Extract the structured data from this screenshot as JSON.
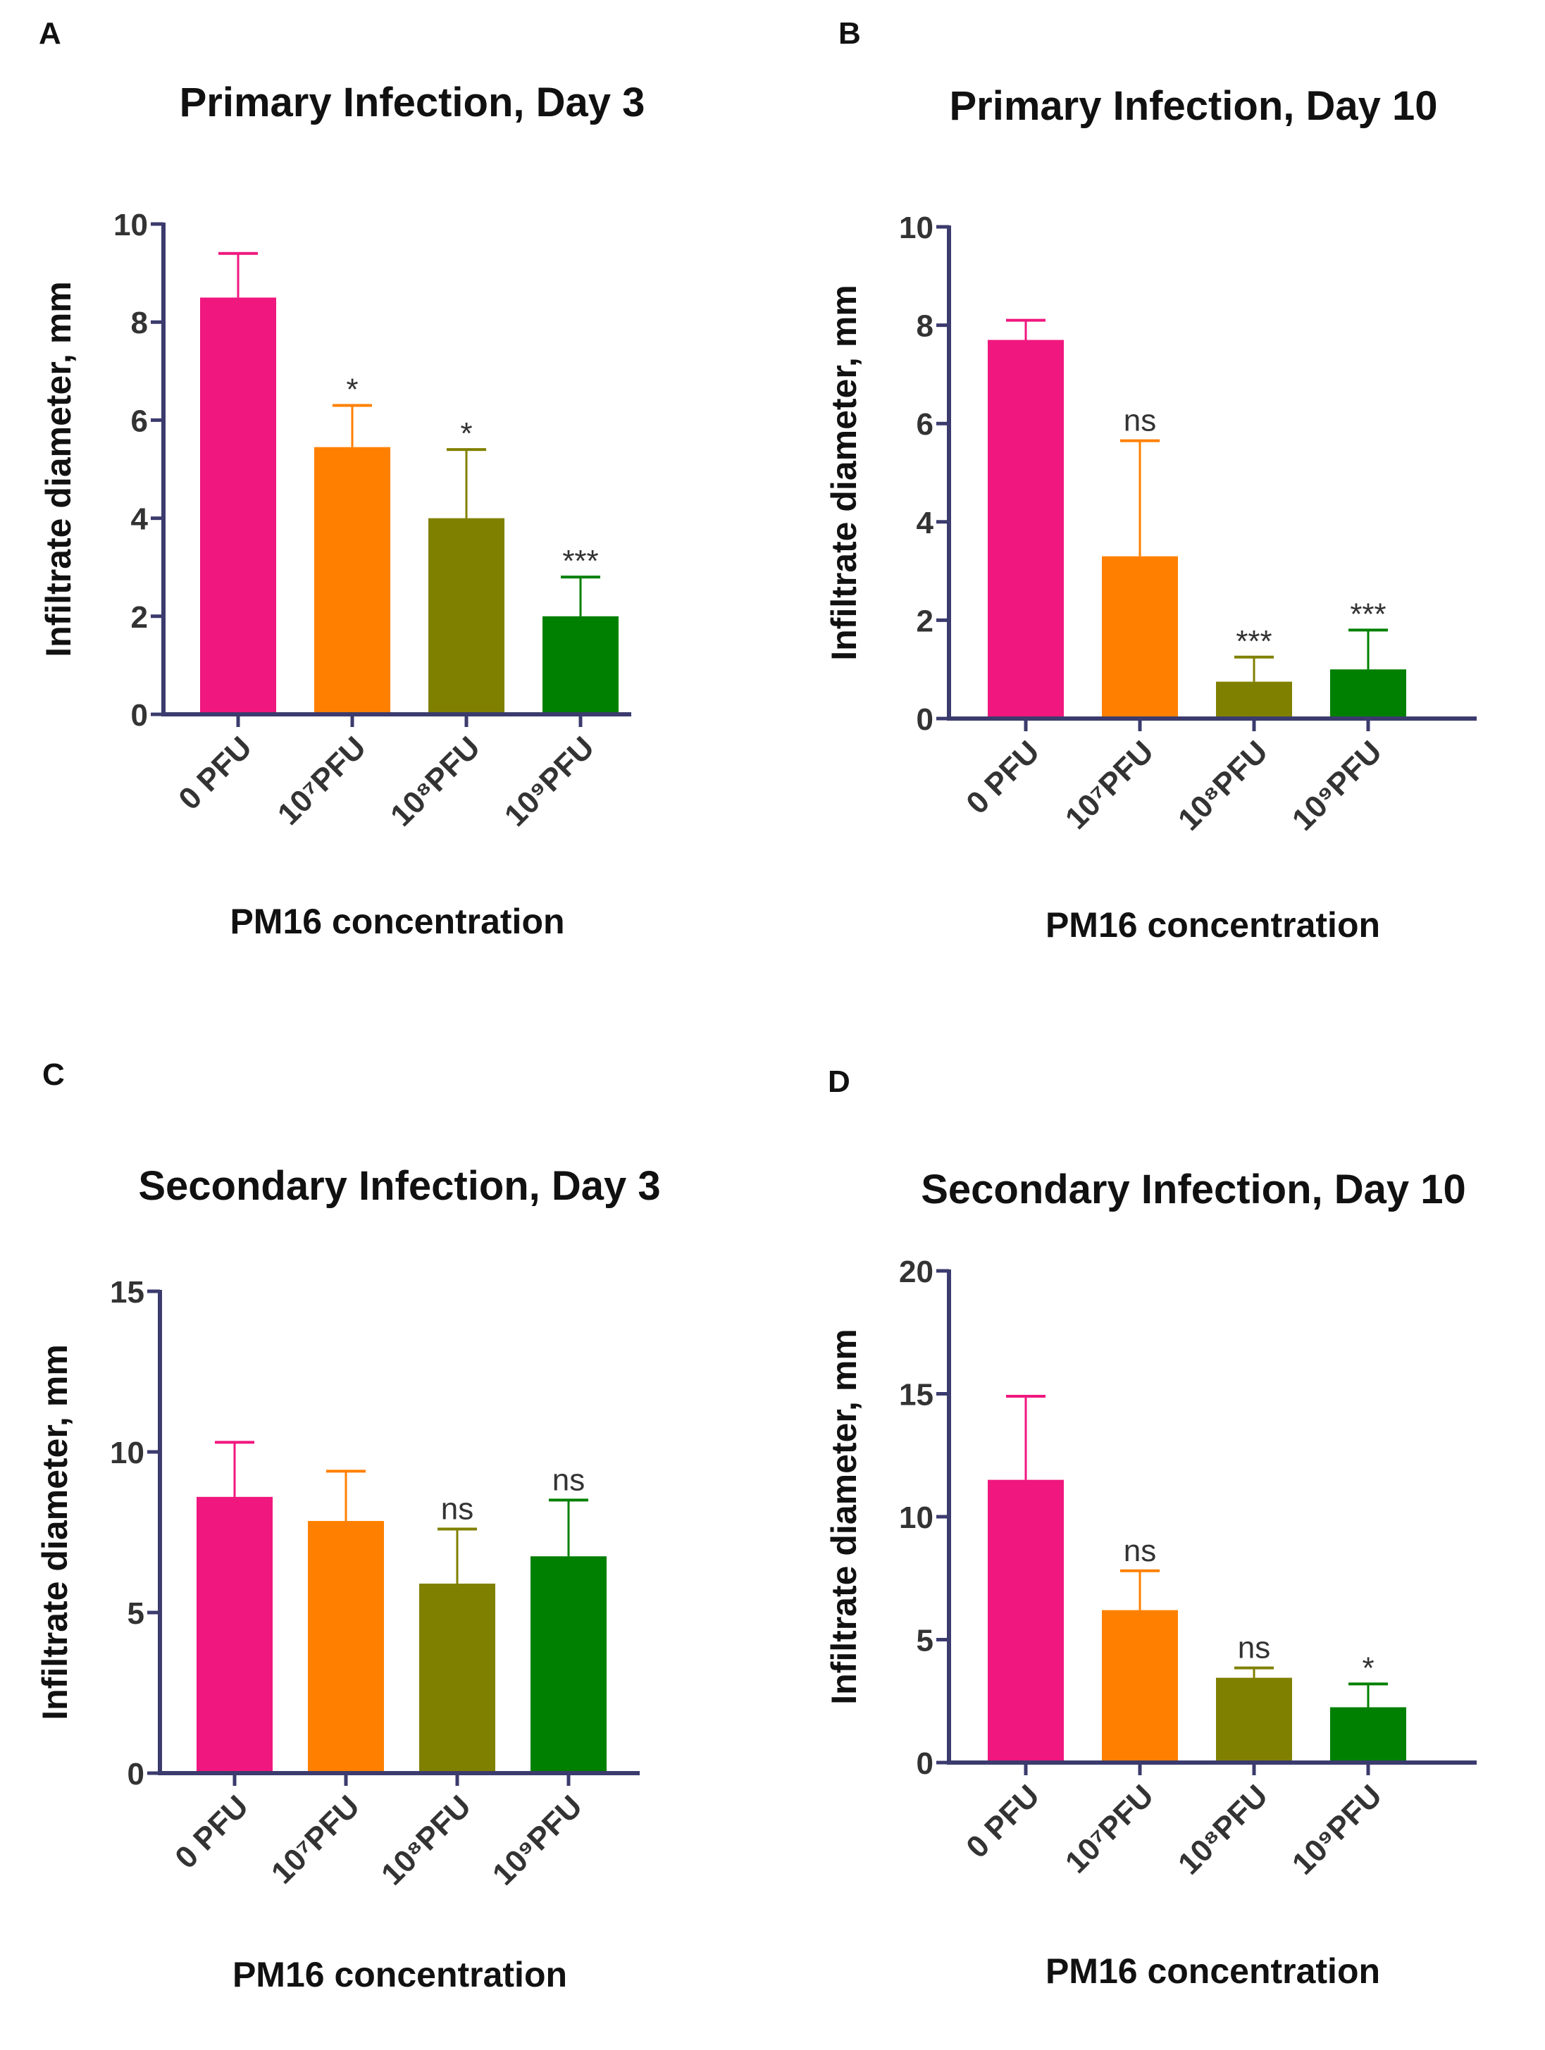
{
  "colors": {
    "axis": "#3b3b6e",
    "bars": [
      "#F0177E",
      "#FF8000",
      "#808000",
      "#008000"
    ]
  },
  "chart_data": [
    {
      "panel": "A",
      "type": "bar",
      "title": "Primary Infection, Day 3",
      "xlabel": "PM16 concentration",
      "ylabel": "Infiltrate diameter, mm",
      "categories": [
        "0 PFU",
        "10⁷PFU",
        "10⁸PFU",
        "10⁹PFU"
      ],
      "values": [
        8.5,
        5.45,
        4.0,
        2.0
      ],
      "error_upper": [
        9.4,
        6.3,
        5.4,
        2.8
      ],
      "significance": [
        "",
        "*",
        "*",
        "***"
      ],
      "ylim": [
        0,
        10
      ],
      "yticks": [
        0,
        2,
        4,
        6,
        8,
        10
      ],
      "grid": false
    },
    {
      "panel": "B",
      "type": "bar",
      "title": "Primary Infection, Day 10",
      "xlabel": "PM16 concentration",
      "ylabel": "Infiltrate diameter, mm",
      "categories": [
        "0 PFU",
        "10⁷PFU",
        "10⁸PFU",
        "10⁹PFU"
      ],
      "values": [
        7.7,
        3.3,
        0.75,
        1.0
      ],
      "error_upper": [
        8.1,
        5.65,
        1.25,
        1.8
      ],
      "significance": [
        "",
        "ns",
        "***",
        "***"
      ],
      "ylim": [
        0,
        10
      ],
      "yticks": [
        0,
        2,
        4,
        6,
        8,
        10
      ],
      "grid": false
    },
    {
      "panel": "C",
      "type": "bar",
      "title": "Secondary Infection, Day 3",
      "xlabel": "PM16 concentration",
      "ylabel": "Infiltrate diameter, mm",
      "categories": [
        "0 PFU",
        "10⁷PFU",
        "10⁸PFU",
        "10⁹PFU"
      ],
      "values": [
        8.6,
        7.85,
        5.9,
        6.75
      ],
      "error_upper": [
        10.3,
        9.4,
        7.6,
        8.5
      ],
      "significance": [
        "",
        "",
        "ns",
        "ns"
      ],
      "ylim": [
        0,
        15
      ],
      "yticks": [
        0,
        5,
        10,
        15
      ],
      "grid": false
    },
    {
      "panel": "D",
      "type": "bar",
      "title": "Secondary Infection, Day 10",
      "xlabel": "PM16 concentration",
      "ylabel": "Infiltrate diameter, mm",
      "categories": [
        "0 PFU",
        "10⁷PFU",
        "10⁸PFU",
        "10⁹PFU"
      ],
      "values": [
        11.5,
        6.2,
        3.45,
        2.25
      ],
      "error_upper": [
        14.9,
        7.8,
        3.85,
        3.2
      ],
      "significance": [
        "",
        "ns",
        "ns",
        "*"
      ],
      "ylim": [
        0,
        20
      ],
      "yticks": [
        0,
        5,
        10,
        15,
        20
      ],
      "grid": false
    }
  ]
}
